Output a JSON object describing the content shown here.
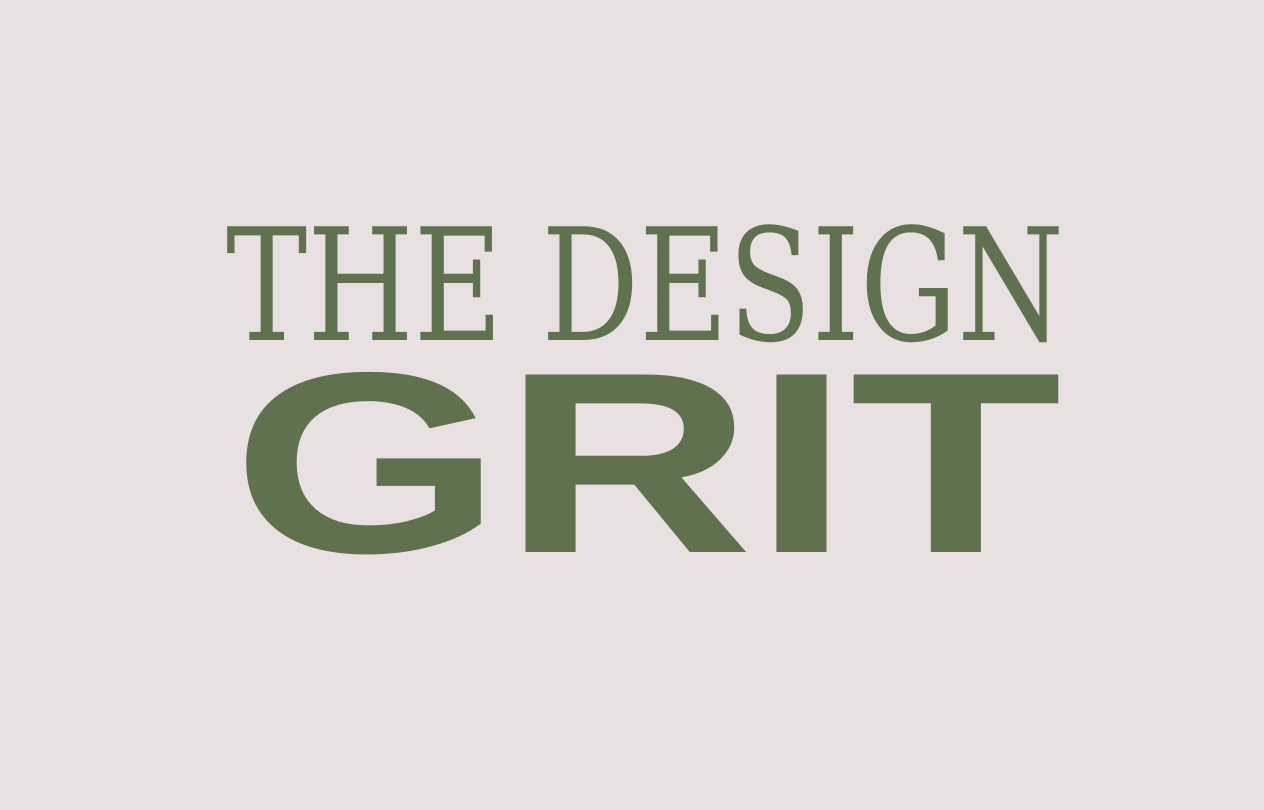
{
  "logo": {
    "line1": "THE DESIGN",
    "line2": "GRIT",
    "color": "#607150",
    "background": "#e8e0e1"
  }
}
